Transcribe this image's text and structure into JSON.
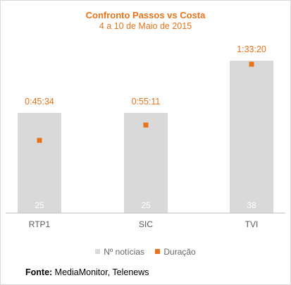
{
  "colors": {
    "accent": "#e8731a",
    "bar": "#d9d9d9",
    "axis": "#bfbfbf",
    "label": "#595959",
    "bar_label": "#ffffff"
  },
  "source": {
    "label": "Fonte:",
    "text": "MediaMonitor, Telenews"
  },
  "chart_data": {
    "type": "bar",
    "title": "Confronto Passos vs Costa",
    "subtitle": "4 a 10 de Maio de 2015",
    "categories": [
      "RTP1",
      "SIC",
      "TVI"
    ],
    "series": [
      {
        "name": "Nº notícias",
        "kind": "bar",
        "values": [
          25,
          25,
          38
        ],
        "labels": [
          "25",
          "25",
          "38"
        ]
      },
      {
        "name": "Duração",
        "kind": "marker",
        "values_seconds": [
          2734,
          3311,
          5600
        ],
        "labels": [
          "0:45:34",
          "0:55:11",
          "1:33:20"
        ]
      }
    ],
    "legend_position": "bottom",
    "grid": false
  }
}
